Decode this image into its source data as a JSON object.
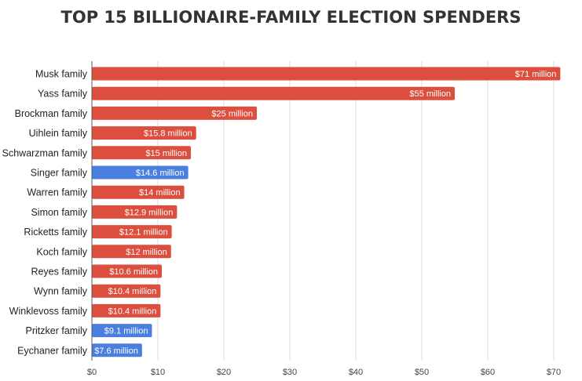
{
  "chart_data": {
    "type": "bar",
    "orientation": "horizontal",
    "title": "TOP 15 BILLIONAIRE-FAMILY ELECTION SPENDERS",
    "xlabel": "",
    "ylabel": "",
    "xlim": [
      0,
      70
    ],
    "grid": true,
    "legend": null,
    "x_ticks": [
      0,
      10,
      20,
      30,
      40,
      50,
      60,
      70
    ],
    "x_tick_labels": [
      "$0",
      "$10",
      "$20",
      "$30",
      "$40",
      "$50",
      "$60",
      "$70"
    ],
    "categories": [
      "Musk family",
      "Yass family",
      "Brockman family",
      "Uihlein family",
      "Schwarzman family",
      "Singer family",
      "Warren family",
      "Simon family",
      "Ricketts family",
      "Koch family",
      "Reyes family",
      "Wynn family",
      "Winklevoss family",
      "Pritzker family",
      "Eychaner family"
    ],
    "values": [
      71,
      55,
      25,
      15.8,
      15,
      14.6,
      14,
      12.9,
      12.1,
      12,
      10.6,
      10.4,
      10.4,
      9.1,
      7.6
    ],
    "data_labels": [
      "$71 million",
      "$55 million",
      "$25 million",
      "$15.8 million",
      "$15 million",
      "$14.6 million",
      "$14 million",
      "$12.9 million",
      "$12.1 million",
      "$12 million",
      "$10.6 million",
      "$10.4 million",
      "$10.4 million",
      "$9.1 million",
      "$7.6 million"
    ],
    "bar_party": [
      "R",
      "R",
      "R",
      "R",
      "R",
      "D",
      "R",
      "R",
      "R",
      "R",
      "R",
      "R",
      "R",
      "D",
      "D"
    ],
    "colors": {
      "R": "#dc4f3f",
      "D": "#4a7fe0"
    }
  }
}
